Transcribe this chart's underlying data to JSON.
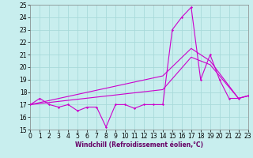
{
  "xlabel": "Windchill (Refroidissement éolien,°C)",
  "bg_color": "#c8eeee",
  "grid_color": "#a8dada",
  "line_color": "#cc00cc",
  "xlim": [
    0,
    23
  ],
  "ylim": [
    15,
    25
  ],
  "yticks": [
    15,
    16,
    17,
    18,
    19,
    20,
    21,
    22,
    23,
    24,
    25
  ],
  "xticks": [
    0,
    1,
    2,
    3,
    4,
    5,
    6,
    7,
    8,
    9,
    10,
    11,
    12,
    13,
    14,
    15,
    16,
    17,
    18,
    19,
    20,
    21,
    22,
    23
  ],
  "noisy_x": [
    0,
    1,
    2,
    3,
    4,
    5,
    6,
    7,
    8,
    9,
    10,
    11,
    12,
    13,
    14,
    15,
    16,
    17,
    18,
    19,
    20,
    21,
    22,
    23
  ],
  "noisy_y": [
    17.0,
    17.5,
    17.0,
    16.8,
    17.0,
    16.5,
    16.8,
    16.8,
    15.2,
    17.0,
    17.0,
    16.7,
    17.0,
    17.0,
    17.0,
    23.0,
    24.0,
    24.8,
    19.0,
    21.0,
    19.0,
    17.5,
    17.5,
    17.7
  ],
  "trend1_x": [
    0,
    14,
    17,
    19,
    22,
    23
  ],
  "trend1_y": [
    17.0,
    19.3,
    21.5,
    20.5,
    17.5,
    17.7
  ],
  "trend2_x": [
    0,
    14,
    17,
    19,
    22,
    23
  ],
  "trend2_y": [
    17.0,
    18.2,
    20.8,
    20.2,
    17.5,
    17.7
  ],
  "tick_fontsize": 5.5,
  "xlabel_fontsize": 5.5
}
